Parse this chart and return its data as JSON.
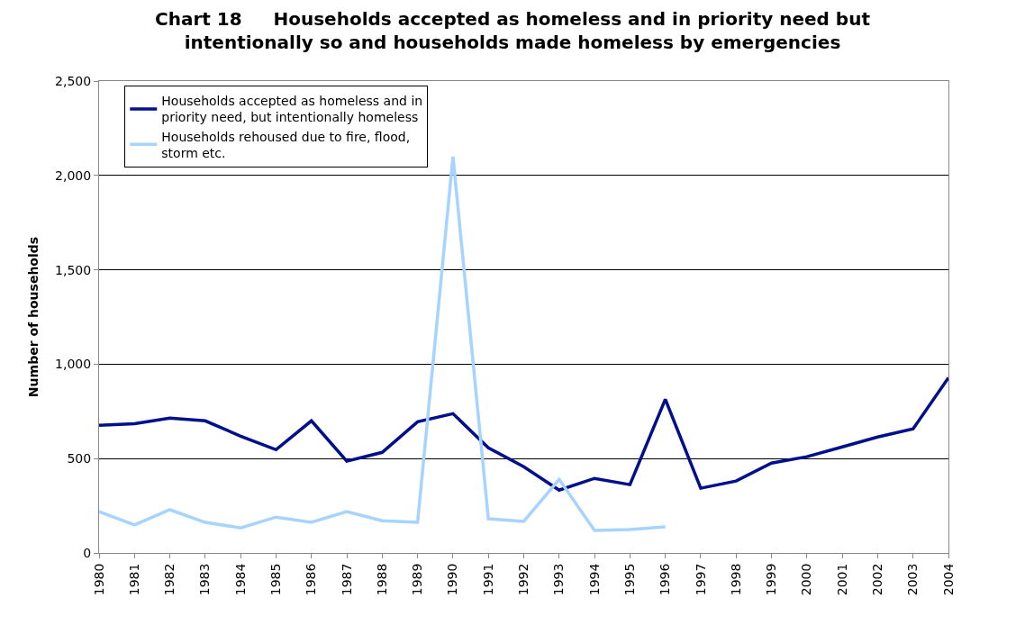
{
  "chart_data": {
    "type": "line",
    "title": "Chart 18     Households accepted as homeless and in priority need but intentionally so and households made homeless by emergencies",
    "ylabel": "Number of households",
    "categories": [
      "1980",
      "1981",
      "1982",
      "1983",
      "1984",
      "1985",
      "1986",
      "1987",
      "1988",
      "1989",
      "1990",
      "1991",
      "1992",
      "1993",
      "1994",
      "1995",
      "1996",
      "1997",
      "1998",
      "1999",
      "2000",
      "2001",
      "2002",
      "2003",
      "2004"
    ],
    "series": [
      {
        "name": "Households accepted as homeless and in priority need, but intentionally homeless",
        "color": "#000f8c",
        "values": [
          676,
          685,
          714,
          700,
          619,
          547,
          700,
          486,
          533,
          695,
          738,
          557,
          457,
          333,
          395,
          362,
          814,
          343,
          381,
          476,
          510,
          562,
          614,
          657,
          928
        ]
      },
      {
        "name": "Households rehoused due to fire, flood, storm etc.",
        "color": "#a6d3ff",
        "values": [
          219,
          148,
          229,
          162,
          133,
          190,
          162,
          219,
          171,
          162,
          2100,
          181,
          167,
          390,
          119,
          124,
          138,
          null,
          null,
          null,
          null,
          null,
          null,
          null,
          null
        ]
      }
    ],
    "ylim": [
      0,
      2500
    ],
    "yticks": [
      {
        "value": 0,
        "label": "0"
      },
      {
        "value": 500,
        "label": "500"
      },
      {
        "value": 1000,
        "label": "1,000"
      },
      {
        "value": 1500,
        "label": "1,500"
      },
      {
        "value": 2000,
        "label": "2,000"
      },
      {
        "value": 2500,
        "label": "2,500"
      }
    ],
    "grid": "y",
    "legend": "top left",
    "marker": "none",
    "line_style": "solid"
  }
}
